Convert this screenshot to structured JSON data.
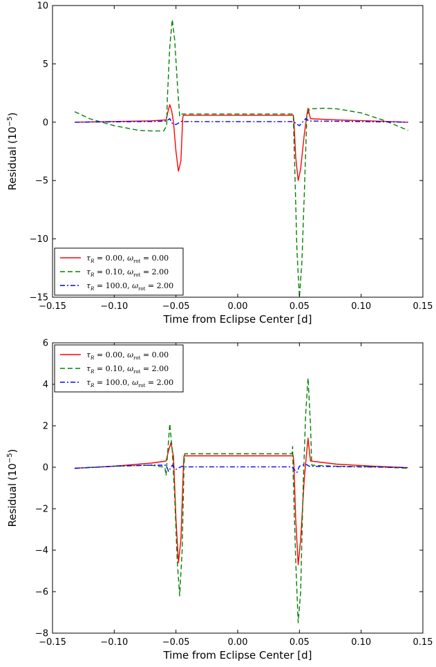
{
  "chart_data": [
    {
      "type": "line",
      "xlabel": "Time from Eclipse Center [d]",
      "ylabel_main": "Residual",
      "ylabel_unit": "(10",
      "ylabel_exp": "−5",
      "ylabel_close": ")",
      "xlim": [
        -0.15,
        0.15
      ],
      "ylim": [
        -15,
        10
      ],
      "xticks": [
        -0.15,
        -0.1,
        -0.05,
        0.0,
        0.05,
        0.1,
        0.15
      ],
      "xtick_labels": [
        "−0.15",
        "−0.10",
        "−0.05",
        "0.00",
        "0.05",
        "0.10",
        "0.15"
      ],
      "yticks": [
        -15,
        -10,
        -5,
        0,
        5,
        10
      ],
      "ytick_labels": [
        "−15",
        "−10",
        "−5",
        "0",
        "5",
        "10"
      ],
      "legend_position": "lower-left",
      "grid": false,
      "series": [
        {
          "name": "τR = 0.00, ωrot = 0.00",
          "color": "#ff0000",
          "style": "solid",
          "points": [
            [
              -0.132,
              0.0
            ],
            [
              -0.1,
              0.06
            ],
            [
              -0.07,
              0.12
            ],
            [
              -0.058,
              0.2
            ],
            [
              -0.0565,
              0.9
            ],
            [
              -0.055,
              1.5
            ],
            [
              -0.0535,
              1.0
            ],
            [
              -0.052,
              0.0
            ],
            [
              -0.05,
              -2.5
            ],
            [
              -0.048,
              -4.2
            ],
            [
              -0.046,
              -3.3
            ],
            [
              -0.0445,
              0.4
            ],
            [
              -0.044,
              0.6
            ],
            [
              0.0,
              0.6
            ],
            [
              0.045,
              0.6
            ],
            [
              0.0455,
              0.2
            ],
            [
              0.047,
              -3.0
            ],
            [
              0.049,
              -5.0
            ],
            [
              0.051,
              -4.0
            ],
            [
              0.054,
              -1.0
            ],
            [
              0.056,
              0.6
            ],
            [
              0.057,
              1.2
            ],
            [
              0.058,
              0.7
            ],
            [
              0.059,
              0.3
            ],
            [
              0.08,
              0.2
            ],
            [
              0.11,
              0.1
            ],
            [
              0.138,
              0.0
            ]
          ]
        },
        {
          "name": "τR = 0.10, ωrot = 2.00",
          "color": "#008000",
          "style": "dashed",
          "points": [
            [
              -0.132,
              0.9
            ],
            [
              -0.12,
              0.3
            ],
            [
              -0.1,
              -0.3
            ],
            [
              -0.08,
              -0.7
            ],
            [
              -0.07,
              -0.75
            ],
            [
              -0.06,
              -0.75
            ],
            [
              -0.0575,
              -0.3
            ],
            [
              -0.057,
              2.0
            ],
            [
              -0.055,
              6.5
            ],
            [
              -0.053,
              8.8
            ],
            [
              -0.051,
              7.0
            ],
            [
              -0.049,
              3.5
            ],
            [
              -0.047,
              0.5
            ],
            [
              -0.045,
              0.7
            ],
            [
              0.0,
              0.7
            ],
            [
              0.045,
              0.7
            ],
            [
              0.046,
              -3.0
            ],
            [
              0.048,
              -11.0
            ],
            [
              0.05,
              -15.0
            ],
            [
              0.052,
              -12.0
            ],
            [
              0.054,
              -6.0
            ],
            [
              0.056,
              0.5
            ],
            [
              0.058,
              1.1
            ],
            [
              0.06,
              1.15
            ],
            [
              0.07,
              1.2
            ],
            [
              0.08,
              1.15
            ],
            [
              0.1,
              0.8
            ],
            [
              0.12,
              0.1
            ],
            [
              0.138,
              -0.7
            ]
          ]
        },
        {
          "name": "τR = 100.0, ωrot = 2.00",
          "color": "#0000ff",
          "style": "dashdot",
          "points": [
            [
              -0.132,
              0.0
            ],
            [
              -0.1,
              0.03
            ],
            [
              -0.07,
              0.06
            ],
            [
              -0.058,
              0.1
            ],
            [
              -0.055,
              0.3
            ],
            [
              -0.053,
              -0.1
            ],
            [
              -0.05,
              -0.2
            ],
            [
              -0.045,
              0.1
            ],
            [
              -0.044,
              0.05
            ],
            [
              0.0,
              0.05
            ],
            [
              0.045,
              0.05
            ],
            [
              0.05,
              -0.3
            ],
            [
              0.055,
              0.3
            ],
            [
              0.058,
              0.1
            ],
            [
              0.08,
              0.08
            ],
            [
              0.11,
              0.04
            ],
            [
              0.138,
              0.0
            ]
          ]
        }
      ]
    },
    {
      "type": "line",
      "xlabel": "Time from Eclipse Center [d]",
      "ylabel_main": "Residual",
      "ylabel_unit": "(10",
      "ylabel_exp": "−5",
      "ylabel_close": ")",
      "xlim": [
        -0.15,
        0.15
      ],
      "ylim": [
        -8,
        6
      ],
      "xticks": [
        -0.15,
        -0.1,
        -0.05,
        0.0,
        0.05,
        0.1,
        0.15
      ],
      "xtick_labels": [
        "−0.15",
        "−0.10",
        "−0.05",
        "0.00",
        "0.05",
        "0.10",
        "0.15"
      ],
      "yticks": [
        -8,
        -6,
        -4,
        -2,
        0,
        2,
        4,
        6
      ],
      "ytick_labels": [
        "−8",
        "−6",
        "−4",
        "−2",
        "0",
        "2",
        "4",
        "6"
      ],
      "legend_position": "upper-left",
      "grid": false,
      "series": [
        {
          "name": "τR = 0.00, ωrot = 0.00",
          "color": "#ff0000",
          "style": "solid",
          "points": [
            [
              -0.132,
              -0.05
            ],
            [
              -0.1,
              0.05
            ],
            [
              -0.07,
              0.2
            ],
            [
              -0.058,
              0.3
            ],
            [
              -0.056,
              0.8
            ],
            [
              -0.054,
              1.2
            ],
            [
              -0.052,
              0.5
            ],
            [
              -0.05,
              -2.5
            ],
            [
              -0.048,
              -4.6
            ],
            [
              -0.046,
              -3.5
            ],
            [
              -0.044,
              0.0
            ],
            [
              -0.0435,
              0.55
            ],
            [
              0.0,
              0.55
            ],
            [
              0.045,
              0.55
            ],
            [
              0.0455,
              0.2
            ],
            [
              0.047,
              -2.5
            ],
            [
              0.049,
              -4.7
            ],
            [
              0.051,
              -3.5
            ],
            [
              0.054,
              -0.5
            ],
            [
              0.056,
              0.8
            ],
            [
              0.057,
              1.4
            ],
            [
              0.058,
              0.8
            ],
            [
              0.059,
              0.3
            ],
            [
              0.08,
              0.15
            ],
            [
              0.11,
              0.05
            ],
            [
              0.138,
              -0.02
            ]
          ]
        },
        {
          "name": "τR = 0.10, ωrot = 2.00",
          "color": "#008000",
          "style": "dashed",
          "points": [
            [
              -0.132,
              -0.05
            ],
            [
              -0.1,
              0.05
            ],
            [
              -0.07,
              0.1
            ],
            [
              -0.059,
              0.0
            ],
            [
              -0.058,
              -0.4
            ],
            [
              -0.057,
              0.5
            ],
            [
              -0.055,
              2.1
            ],
            [
              -0.053,
              0.8
            ],
            [
              -0.051,
              -1.5
            ],
            [
              -0.049,
              -4.5
            ],
            [
              -0.047,
              -6.2
            ],
            [
              -0.045,
              -4.0
            ],
            [
              -0.0435,
              0.0
            ],
            [
              -0.043,
              0.65
            ],
            [
              0.0,
              0.65
            ],
            [
              0.044,
              0.65
            ],
            [
              0.0445,
              1.0
            ],
            [
              0.045,
              -0.5
            ],
            [
              0.047,
              -4.5
            ],
            [
              0.049,
              -7.5
            ],
            [
              0.051,
              -6.0
            ],
            [
              0.053,
              -1.0
            ],
            [
              0.055,
              2.5
            ],
            [
              0.057,
              4.3
            ],
            [
              0.059,
              2.0
            ],
            [
              0.06,
              0.1
            ],
            [
              0.08,
              0.05
            ],
            [
              0.11,
              0.02
            ],
            [
              0.138,
              -0.05
            ]
          ]
        },
        {
          "name": "τR = 100.0, ωrot = 2.00",
          "color": "#0000ff",
          "style": "dashdot",
          "points": [
            [
              -0.132,
              -0.05
            ],
            [
              -0.1,
              0.05
            ],
            [
              -0.07,
              0.1
            ],
            [
              -0.058,
              0.1
            ],
            [
              -0.056,
              -0.2
            ],
            [
              -0.053,
              0.1
            ],
            [
              -0.05,
              -0.1
            ],
            [
              -0.045,
              0.05
            ],
            [
              -0.044,
              0.02
            ],
            [
              0.0,
              0.02
            ],
            [
              0.044,
              0.02
            ],
            [
              0.048,
              -0.25
            ],
            [
              0.05,
              0.05
            ],
            [
              0.055,
              0.15
            ],
            [
              0.058,
              0.05
            ],
            [
              0.08,
              0.03
            ],
            [
              0.11,
              0.01
            ],
            [
              0.138,
              -0.02
            ]
          ]
        }
      ]
    }
  ],
  "legend_entries": [
    {
      "tau_sym": "τ",
      "tau_sub": "R",
      "tau_val": " = 0.00, ",
      "om_sym": "ω",
      "om_sub": "rot",
      "om_val": " = 0.00"
    },
    {
      "tau_sym": "τ",
      "tau_sub": "R",
      "tau_val": " = 0.10, ",
      "om_sym": "ω",
      "om_sub": "rot",
      "om_val": " = 2.00"
    },
    {
      "tau_sym": "τ",
      "tau_sub": "R",
      "tau_val": " = 100.0, ",
      "om_sym": "ω",
      "om_sub": "rot",
      "om_val": " = 2.00"
    }
  ]
}
